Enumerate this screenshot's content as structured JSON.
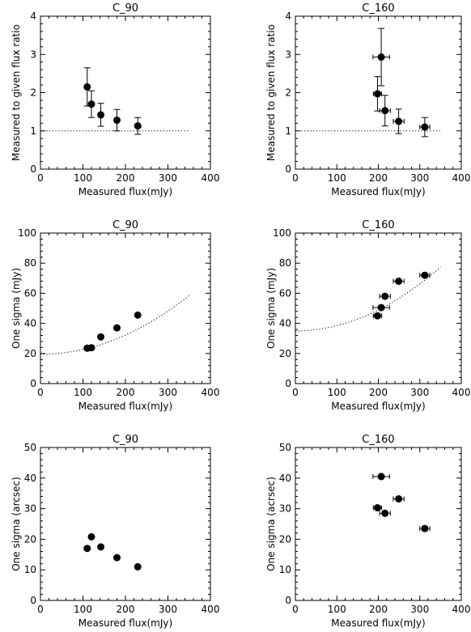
{
  "chart_data": [
    {
      "type": "scatter",
      "title": "C_90",
      "xlabel": "Measured flux(mJy)",
      "ylabel": "Measured to given flux ratio",
      "xlim": [
        0,
        400
      ],
      "ylim": [
        0,
        4
      ],
      "xticks": [
        "0",
        "100",
        "200",
        "300",
        "400"
      ],
      "yticks": [
        "0",
        "1",
        "2",
        "3",
        "4"
      ],
      "points": [
        {
          "x": 110,
          "y": 2.15,
          "yerr": 0.5
        },
        {
          "x": 120,
          "y": 1.7,
          "yerr": 0.35
        },
        {
          "x": 142,
          "y": 1.42,
          "yerr": 0.3
        },
        {
          "x": 180,
          "y": 1.28,
          "yerr": 0.28
        },
        {
          "x": 229,
          "y": 1.13,
          "yerr": 0.22
        }
      ],
      "reference_line": {
        "style": "dotted",
        "kind": "horizontal",
        "y": 1,
        "x_range": [
          0,
          350
        ]
      }
    },
    {
      "type": "scatter",
      "title": "C_160",
      "xlabel": "Measured flux(mJy)",
      "ylabel": "Measured to given flux ratio",
      "xlim": [
        0,
        400
      ],
      "ylim": [
        0,
        4
      ],
      "xticks": [
        "0",
        "100",
        "200",
        "300",
        "400"
      ],
      "yticks": [
        "0",
        "1",
        "2",
        "3",
        "4"
      ],
      "points": [
        {
          "x": 198,
          "y": 1.97,
          "xerr": 10,
          "yerr": 0.45
        },
        {
          "x": 207,
          "y": 2.93,
          "xerr": 20,
          "yerr": 0.75
        },
        {
          "x": 216,
          "y": 1.53,
          "xerr": 13,
          "yerr": 0.4
        },
        {
          "x": 249,
          "y": 1.25,
          "xerr": 13,
          "yerr": 0.32
        },
        {
          "x": 312,
          "y": 1.1,
          "xerr": 12,
          "yerr": 0.25
        }
      ],
      "reference_line": {
        "style": "dotted",
        "kind": "horizontal",
        "y": 1,
        "x_range": [
          0,
          350
        ]
      }
    },
    {
      "type": "scatter",
      "title": "C_90",
      "xlabel": "Measured flux(mJy)",
      "ylabel": "One sigma (mJy)",
      "xlim": [
        0,
        400
      ],
      "ylim": [
        0,
        100
      ],
      "xticks": [
        "0",
        "100",
        "200",
        "300",
        "400"
      ],
      "yticks": [
        "0",
        "20",
        "40",
        "60",
        "80",
        "100"
      ],
      "points": [
        {
          "x": 110,
          "y": 23.5,
          "xerr": 5
        },
        {
          "x": 120,
          "y": 23.8,
          "xerr": 5
        },
        {
          "x": 142,
          "y": 31,
          "xerr": 5
        },
        {
          "x": 180,
          "y": 37,
          "xerr": 5
        },
        {
          "x": 229,
          "y": 45.5,
          "xerr": 5
        }
      ],
      "reference_curve": {
        "style": "dotted",
        "kind": "quadratic",
        "y0": 19.5,
        "y_end": 58.5,
        "x_range": [
          0,
          350
        ]
      }
    },
    {
      "type": "scatter",
      "title": "C_160",
      "xlabel": "Measured flux(mJy)",
      "ylabel": "One sigma (mJy)",
      "xlim": [
        0,
        400
      ],
      "ylim": [
        0,
        100
      ],
      "xticks": [
        "0",
        "100",
        "200",
        "300",
        "400"
      ],
      "yticks": [
        "0",
        "20",
        "40",
        "60",
        "80",
        "100"
      ],
      "points": [
        {
          "x": 198,
          "y": 45,
          "xerr": 10
        },
        {
          "x": 207,
          "y": 50.5,
          "xerr": 20
        },
        {
          "x": 216,
          "y": 58,
          "xerr": 13
        },
        {
          "x": 249,
          "y": 68,
          "xerr": 13
        },
        {
          "x": 312,
          "y": 72,
          "xerr": 12
        }
      ],
      "reference_curve": {
        "style": "dotted",
        "kind": "quadratic",
        "y0": 35,
        "y_end": 77.5,
        "x_range": [
          0,
          350
        ]
      }
    },
    {
      "type": "scatter",
      "title": "C_90",
      "xlabel": "Measured flux(mJy)",
      "ylabel": "One sigma (arcsec)",
      "xlim": [
        0,
        400
      ],
      "ylim": [
        0,
        50
      ],
      "xticks": [
        "0",
        "100",
        "200",
        "300",
        "400"
      ],
      "yticks": [
        "0",
        "10",
        "20",
        "30",
        "40",
        "50"
      ],
      "points": [
        {
          "x": 110,
          "y": 17
        },
        {
          "x": 120,
          "y": 20.8
        },
        {
          "x": 142,
          "y": 17.5
        },
        {
          "x": 180,
          "y": 14
        },
        {
          "x": 229,
          "y": 11
        }
      ]
    },
    {
      "type": "scatter",
      "title": "C_160",
      "xlabel": "Measured flux(mJy)",
      "ylabel": "One sigma (acrsec)",
      "xlim": [
        0,
        400
      ],
      "ylim": [
        0,
        50
      ],
      "xticks": [
        "0",
        "100",
        "200",
        "300",
        "400"
      ],
      "yticks": [
        "0",
        "10",
        "20",
        "30",
        "40",
        "50"
      ],
      "points": [
        {
          "x": 198,
          "y": 30.3,
          "xerr": 10
        },
        {
          "x": 207,
          "y": 40.5,
          "xerr": 20
        },
        {
          "x": 216,
          "y": 28.5,
          "xerr": 13
        },
        {
          "x": 249,
          "y": 33.2,
          "xerr": 13
        },
        {
          "x": 312,
          "y": 23.5,
          "xerr": 12
        }
      ]
    }
  ]
}
